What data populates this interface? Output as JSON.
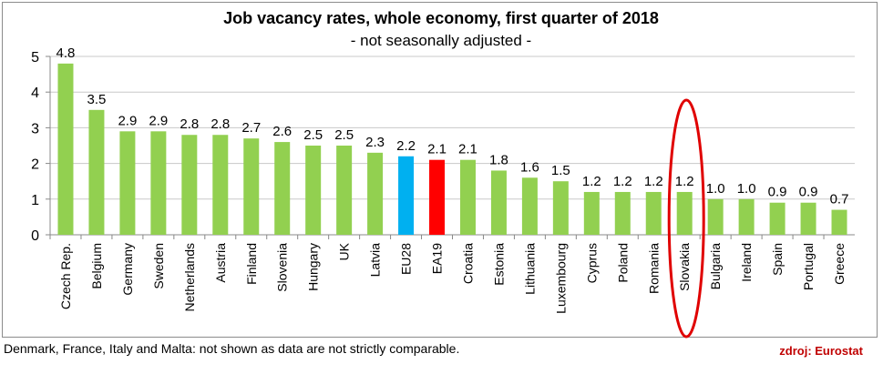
{
  "chart_data": {
    "type": "bar",
    "title": "Job vacancy rates, whole economy, first quarter of 2018",
    "subtitle": "- not seasonally adjusted -",
    "xlabel": "",
    "ylabel": "",
    "ylim": [
      0,
      5
    ],
    "yticks": [
      "0",
      "1",
      "2",
      "3",
      "4",
      "5"
    ],
    "grid": true,
    "categories": [
      "Czech Rep.",
      "Belgium",
      "Germany",
      "Sweden",
      "Netherlands",
      "Austria",
      "Finland",
      "Slovenia",
      "Hungary",
      "UK",
      "Latvia",
      "EU28",
      "EA19",
      "Croatia",
      "Estonia",
      "Lithuania",
      "Luxembourg",
      "Cyprus",
      "Poland",
      "Romania",
      "Slovakia",
      "Bulgaria",
      "Ireland",
      "Spain",
      "Portugal",
      "Greece"
    ],
    "values": [
      4.8,
      3.5,
      2.9,
      2.9,
      2.8,
      2.8,
      2.7,
      2.6,
      2.5,
      2.5,
      2.3,
      2.2,
      2.1,
      2.1,
      1.8,
      1.6,
      1.5,
      1.2,
      1.2,
      1.2,
      1.2,
      1.0,
      1.0,
      0.9,
      0.9,
      0.7
    ],
    "value_labels": [
      "4.8",
      "3.5",
      "2.9",
      "2.9",
      "2.8",
      "2.8",
      "2.7",
      "2.6",
      "2.5",
      "2.5",
      "2.3",
      "2.2",
      "2.1",
      "2.1",
      "1.8",
      "1.6",
      "1.5",
      "1.2",
      "1.2",
      "1.2",
      "1.2",
      "1.0",
      "1.0",
      "0.9",
      "0.9",
      "0.7"
    ],
    "highlight": {
      "EU28": "#00b0f0",
      "EA19": "#ff0000"
    },
    "annotation": {
      "type": "ellipse",
      "target": "Slovakia",
      "color": "#e00000"
    }
  },
  "colors": {
    "bar_default": "#92d050",
    "bar_eu28": "#00b0f0",
    "bar_ea19": "#ff0000",
    "grid": "#c8c8c8",
    "annotation": "#e00000",
    "source_text": "#c00000"
  },
  "footnote": "Denmark, France, Italy and Malta: not shown as data are not strictly comparable.",
  "source": "zdroj: Eurostat"
}
